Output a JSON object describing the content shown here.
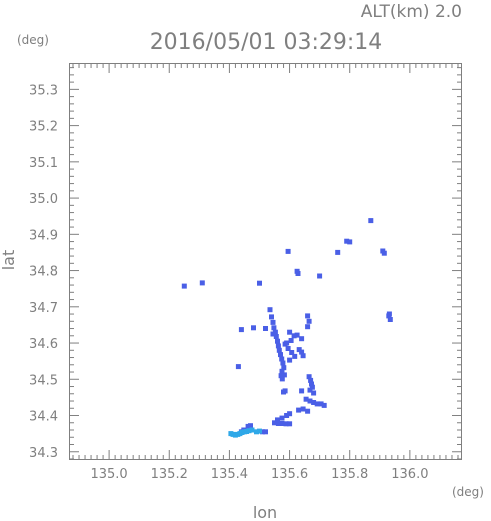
{
  "header": {
    "alt_label": "ALT(km) 2.0",
    "timestamp": "2016/05/01 03:29:14",
    "y_unit": "(deg)",
    "x_unit": "(deg)"
  },
  "chart_data": {
    "type": "scatter",
    "xlabel": "lon",
    "ylabel": "lat",
    "xlim": [
      134.87,
      136.17
    ],
    "ylim": [
      34.28,
      35.37
    ],
    "x_ticks": [
      135.0,
      135.2,
      135.4,
      135.6,
      135.8,
      136.0
    ],
    "y_ticks": [
      34.3,
      34.4,
      34.5,
      34.6,
      34.7,
      34.8,
      34.9,
      35.0,
      35.1,
      35.2,
      35.3
    ],
    "x_tick_labels": [
      "135.0",
      "135.2",
      "135.4",
      "135.6",
      "135.8",
      "136.0"
    ],
    "y_tick_labels": [
      "34.3",
      "34.4",
      "34.5",
      "34.6",
      "34.7",
      "34.8",
      "34.9",
      "35.0",
      "35.1",
      "35.2",
      "35.3"
    ],
    "grid": false,
    "colors": {
      "primary": "#4a5fe6",
      "secondary": "#2fa8e8",
      "axis": "#7f7f7f"
    },
    "series": [
      {
        "color": "#4a5fe6",
        "points": [
          [
            135.25,
            34.757
          ],
          [
            135.31,
            34.766
          ],
          [
            135.5,
            34.765
          ],
          [
            135.87,
            34.938
          ],
          [
            135.79,
            34.881
          ],
          [
            135.8,
            34.879
          ],
          [
            135.76,
            34.85
          ],
          [
            135.91,
            34.854
          ],
          [
            135.915,
            34.848
          ],
          [
            135.595,
            34.853
          ],
          [
            135.625,
            34.798
          ],
          [
            135.628,
            34.792
          ],
          [
            135.7,
            34.785
          ],
          [
            135.93,
            34.675
          ],
          [
            135.935,
            34.665
          ],
          [
            135.932,
            34.68
          ],
          [
            135.535,
            34.692
          ],
          [
            135.54,
            34.672
          ],
          [
            135.545,
            34.657
          ],
          [
            135.548,
            34.642
          ],
          [
            135.553,
            34.63
          ],
          [
            135.556,
            34.618
          ],
          [
            135.56,
            34.605
          ],
          [
            135.563,
            34.592
          ],
          [
            135.566,
            34.58
          ],
          [
            135.57,
            34.568
          ],
          [
            135.574,
            34.556
          ],
          [
            135.578,
            34.545
          ],
          [
            135.581,
            34.532
          ],
          [
            135.575,
            34.522
          ],
          [
            135.583,
            34.512
          ],
          [
            135.576,
            34.501
          ],
          [
            135.572,
            34.51
          ],
          [
            135.48,
            34.642
          ],
          [
            135.44,
            34.637
          ],
          [
            135.52,
            34.64
          ],
          [
            135.545,
            34.625
          ],
          [
            135.6,
            34.63
          ],
          [
            135.615,
            34.62
          ],
          [
            135.625,
            34.622
          ],
          [
            135.64,
            34.612
          ],
          [
            135.66,
            34.675
          ],
          [
            135.665,
            34.66
          ],
          [
            135.66,
            34.645
          ],
          [
            135.585,
            34.597
          ],
          [
            135.595,
            34.585
          ],
          [
            135.607,
            34.574
          ],
          [
            135.617,
            34.563
          ],
          [
            135.632,
            34.582
          ],
          [
            135.64,
            34.575
          ],
          [
            135.645,
            34.565
          ],
          [
            135.6,
            34.553
          ],
          [
            135.59,
            34.6
          ],
          [
            135.605,
            34.607
          ],
          [
            135.43,
            34.535
          ],
          [
            135.58,
            34.465
          ],
          [
            135.585,
            34.468
          ],
          [
            135.64,
            34.468
          ],
          [
            135.665,
            34.507
          ],
          [
            135.67,
            34.497
          ],
          [
            135.673,
            34.487
          ],
          [
            135.676,
            34.478
          ],
          [
            135.668,
            34.47
          ],
          [
            135.68,
            34.462
          ],
          [
            135.655,
            34.445
          ],
          [
            135.668,
            34.44
          ],
          [
            135.68,
            34.436
          ],
          [
            135.692,
            34.432
          ],
          [
            135.705,
            34.432
          ],
          [
            135.715,
            34.428
          ],
          [
            135.63,
            34.415
          ],
          [
            135.645,
            34.418
          ],
          [
            135.66,
            34.412
          ],
          [
            135.6,
            34.405
          ],
          [
            135.59,
            34.4
          ],
          [
            135.575,
            34.393
          ],
          [
            135.56,
            34.388
          ],
          [
            135.55,
            34.38
          ],
          [
            135.563,
            34.378
          ],
          [
            135.575,
            34.378
          ],
          [
            135.588,
            34.377
          ],
          [
            135.6,
            34.377
          ],
          [
            135.51,
            34.355
          ],
          [
            135.52,
            34.355
          ],
          [
            135.462,
            34.37
          ],
          [
            135.47,
            34.372
          ],
          [
            135.448,
            34.36
          ],
          [
            135.44,
            34.355
          ]
        ]
      },
      {
        "color": "#2fa8e8",
        "points": [
          [
            135.405,
            34.35
          ],
          [
            135.412,
            34.348
          ],
          [
            135.42,
            34.346
          ],
          [
            135.428,
            34.348
          ],
          [
            135.435,
            34.35
          ],
          [
            135.442,
            34.353
          ],
          [
            135.45,
            34.355
          ],
          [
            135.457,
            34.356
          ],
          [
            135.465,
            34.358
          ],
          [
            135.475,
            34.36
          ],
          [
            135.49,
            34.355
          ],
          [
            135.5,
            34.357
          ]
        ]
      }
    ]
  }
}
